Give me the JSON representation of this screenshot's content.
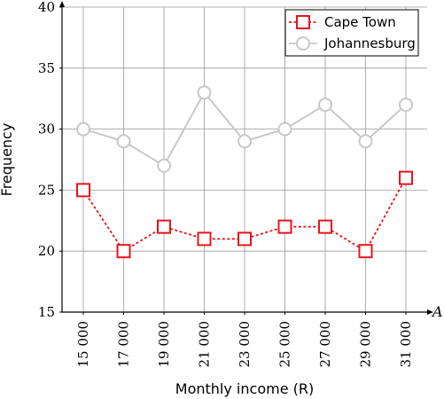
{
  "chart_data": {
    "type": "line",
    "title": "",
    "xlabel": "Monthly income (R)",
    "ylabel": "Frequency",
    "x_axis_end_label": "A",
    "categories": [
      "15 000",
      "17 000",
      "19 000",
      "21 000",
      "23 000",
      "25 000",
      "27 000",
      "29 000",
      "31 000"
    ],
    "x": [
      15000,
      17000,
      19000,
      21000,
      23000,
      25000,
      27000,
      29000,
      31000
    ],
    "ylim": [
      15,
      40
    ],
    "yticks": [
      15,
      20,
      25,
      30,
      35,
      40
    ],
    "grid": true,
    "legend_position": "top-right",
    "series": [
      {
        "name": "Cape Town",
        "values": [
          25,
          20,
          22,
          21,
          21,
          22,
          22,
          20,
          26
        ],
        "color": "#e8141b",
        "marker": "square",
        "line_style": "dashed"
      },
      {
        "name": "Johannesburg",
        "values": [
          30,
          29,
          27,
          33,
          29,
          30,
          32,
          29,
          32
        ],
        "color": "#c8c8c8",
        "marker": "circle",
        "line_style": "solid"
      }
    ]
  }
}
